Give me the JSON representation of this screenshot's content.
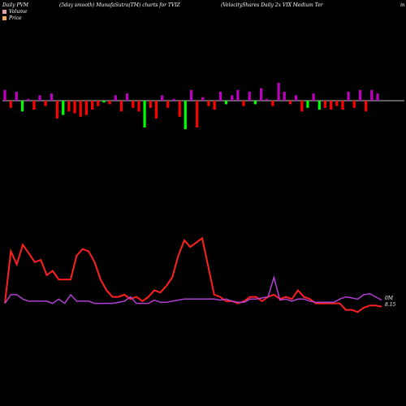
{
  "header": {
    "left": "Daily PVM",
    "mid1": "(5day smooth) MunafaSutra(TM) charts for TVIZ",
    "mid2": "(VelocityShares Daily 2x VIX  Medium Ter",
    "right": "m"
  },
  "legend": [
    {
      "label": "Volume",
      "color": "#e8a0a0"
    },
    {
      "label": "Price",
      "color": "#f0a860"
    }
  ],
  "last_labels": {
    "volume": "0M",
    "price": "8.15"
  },
  "colors": {
    "background": "#000000",
    "pvm_up": "#00ff00",
    "pvm_down": "#ff0000",
    "pvm_pos": "#c000c0",
    "price_line": "#ff2020",
    "volume_line": "#b040d0",
    "baseline": "#ffffff"
  },
  "chart_data": [
    {
      "type": "bar",
      "title": "Daily PVM",
      "series": [
        {
          "values": [
            0.6,
            -0.4,
            0.5,
            -0.6,
            0.1,
            -0.5,
            0.3,
            -0.3,
            0.4,
            -1.0,
            -0.8,
            -0.6,
            -0.7,
            -0.9,
            -0.8,
            -0.5,
            -0.3,
            -0.1,
            -0.2,
            0.3,
            -0.6,
            0.4,
            -0.4,
            -0.6,
            -1.5,
            -0.4,
            -1.0,
            0.3,
            -0.4,
            0.1,
            -0.9,
            -1.6,
            0.6,
            -1.5,
            0.2,
            -0.3,
            -0.5,
            0.5,
            -0.2,
            0.3,
            0.6,
            -0.3,
            0.5,
            -0.2,
            0.7,
            0.1,
            -0.3,
            1.0,
            0.5,
            -0.2,
            0.3,
            -0.6,
            -0.4,
            0.4,
            -0.5,
            -0.4,
            -0.5,
            -0.3,
            -0.5,
            0.5,
            -0.4,
            0.6,
            -0.6,
            0.6,
            0.4
          ]
        }
      ]
    },
    {
      "type": "line",
      "series": [
        {
          "values": [
            8.3,
            10.7,
            10.1,
            11.0,
            10.6,
            10.2,
            10.3,
            9.6,
            9.8,
            9.4,
            9.4,
            9.4,
            10.5,
            10.8,
            10.7,
            10.2,
            9.4,
            8.9,
            8.6,
            8.6,
            8.7,
            8.5,
            8.6,
            8.4,
            8.6,
            8.9,
            8.8,
            9.1,
            9.5,
            10.5,
            11.2,
            10.9,
            11.1,
            11.3,
            10.0,
            8.7,
            8.6,
            8.4,
            8.4,
            8.3,
            8.4,
            8.6,
            8.6,
            8.4,
            8.6,
            8.7,
            8.5,
            8.6,
            8.5,
            8.9,
            8.6,
            8.5,
            8.3,
            8.3,
            8.3,
            8.3,
            8.3,
            8.0,
            8.0,
            7.9,
            8.1,
            8.2,
            8.2,
            8.15
          ]
        },
        {
          "values": [
            8.3,
            8.7,
            8.7,
            8.5,
            8.4,
            8.4,
            8.4,
            8.4,
            8.3,
            8.5,
            8.3,
            8.7,
            8.4,
            8.4,
            8.4,
            8.3,
            8.3,
            8.3,
            8.3,
            8.35,
            8.4,
            8.6,
            8.3,
            8.3,
            8.3,
            8.45,
            8.35,
            8.35,
            8.4,
            8.45,
            8.5,
            8.5,
            8.5,
            8.5,
            8.5,
            8.5,
            8.45,
            8.5,
            8.4,
            8.35,
            8.35,
            8.5,
            8.5,
            8.55,
            8.6,
            9.5,
            8.45,
            8.5,
            8.4,
            8.5,
            8.5,
            8.4,
            8.35,
            8.35,
            8.35,
            8.35,
            8.5,
            8.6,
            8.55,
            8.5,
            8.7,
            8.75,
            8.6,
            8.45
          ]
        }
      ]
    }
  ]
}
